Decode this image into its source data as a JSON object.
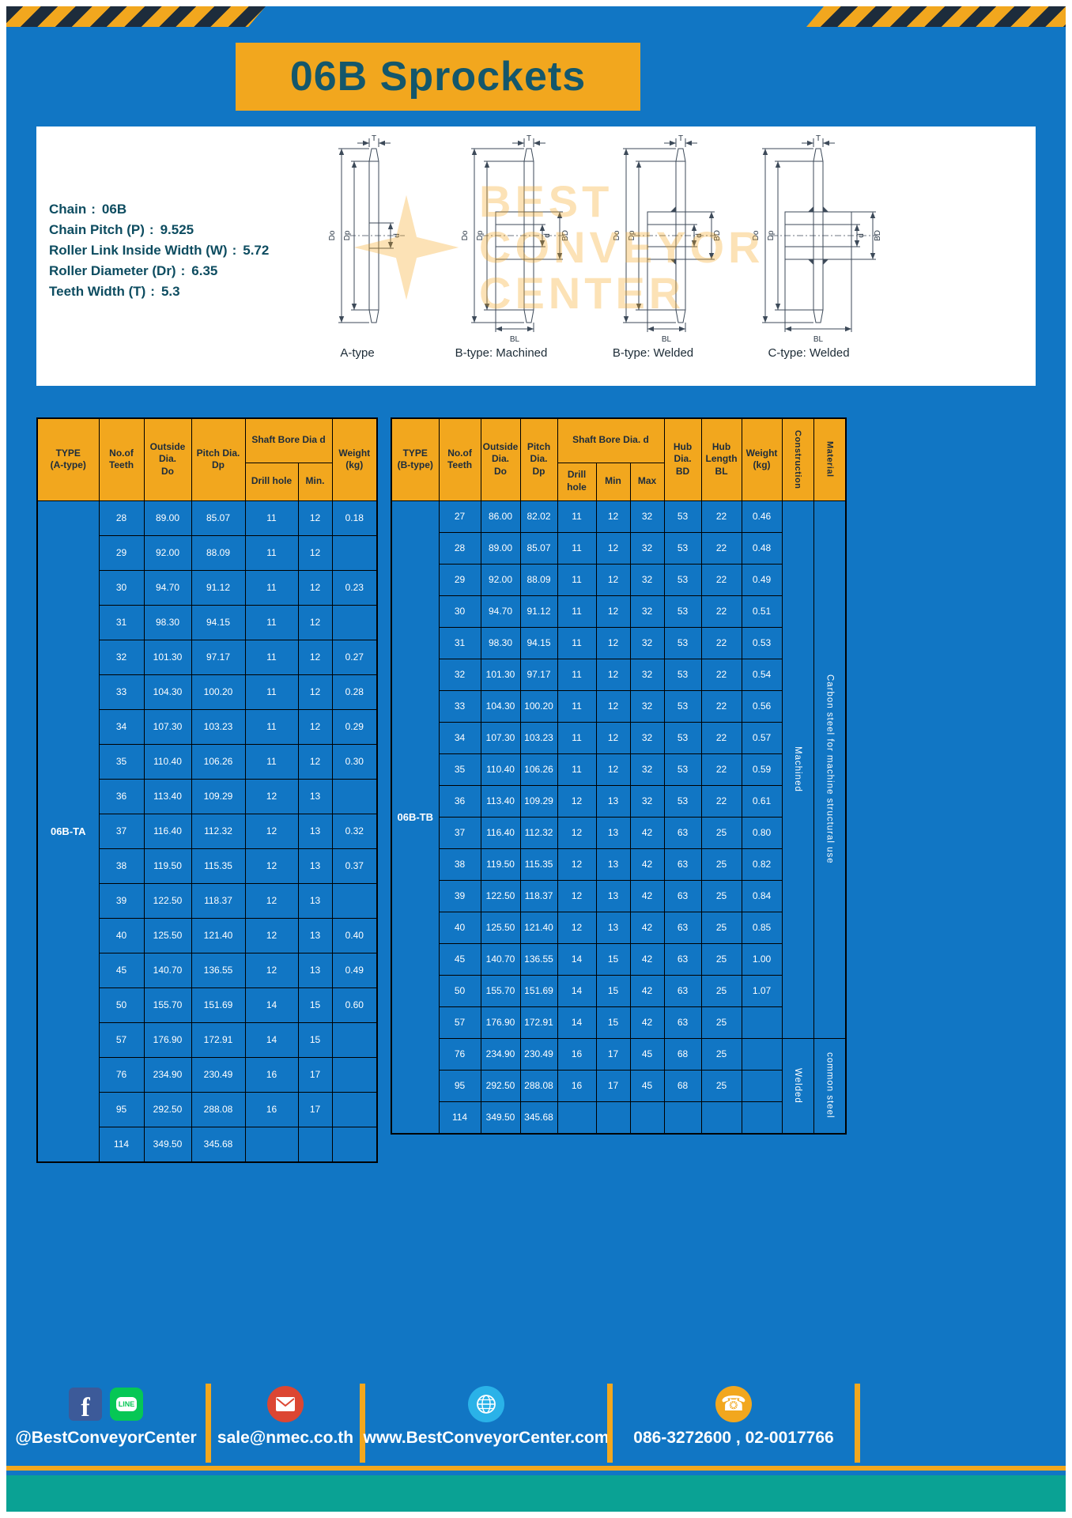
{
  "page": {
    "title": "06B Sprockets"
  },
  "colors": {
    "blue": "#1176c4",
    "yellow": "#f2a71e",
    "navy": "#1d2c3c",
    "title_teal": "#14576b",
    "footer_teal": "#0aa294",
    "line_green": "#06c755",
    "facebook_blue": "#3c5a99"
  },
  "specs": {
    "sep": ":",
    "items": [
      {
        "label": "Chain",
        "value": "06B"
      },
      {
        "label": "Chain Pitch (P)",
        "value": "9.525"
      },
      {
        "label": "Roller Link Inside Width (W)",
        "value": "5.72"
      },
      {
        "label": "Roller Diameter (Dr)",
        "value": "6.35"
      },
      {
        "label": "Teeth Width (T)",
        "value": "5.3"
      }
    ],
    "watermark": {
      "line1": "BEST",
      "line2": "CONVEYOR",
      "line3": "CENTER"
    },
    "drawings": [
      {
        "label": "A-type",
        "dim_t": "T",
        "dim_do": "Do",
        "dim_dp": "Dp",
        "dim_d": "d"
      },
      {
        "label": "B-type: Machined",
        "dim_t": "T",
        "dim_do": "Do",
        "dim_dp": "Dp",
        "dim_d": "d",
        "dim_bd": "BD",
        "dim_bl": "BL"
      },
      {
        "label": "B-type: Welded",
        "dim_t": "T",
        "dim_do": "Do",
        "dim_dp": "Dp",
        "dim_d": "d",
        "dim_bd": "BD",
        "dim_bl": "BL"
      },
      {
        "label": "C-type: Welded",
        "dim_t": "T",
        "dim_do": "Do",
        "dim_dp": "Dp",
        "dim_d": "d",
        "dim_bd": "BD",
        "dim_bl": "BL"
      }
    ]
  },
  "table_a": {
    "headers": {
      "type": "TYPE\n(A-type)",
      "teeth": "No.of\nTeeth",
      "outside": "Outside\nDia.\nDo",
      "pitch": "Pitch Dia.\nDp",
      "shaft": "Shaft Bore Dia d",
      "drill": "Drill hole",
      "min": "Min.",
      "weight": "Weight\n(kg)"
    },
    "type_value": "06B-TA",
    "rows": [
      [
        "28",
        "89.00",
        "85.07",
        "11",
        "12",
        "0.18"
      ],
      [
        "29",
        "92.00",
        "88.09",
        "11",
        "12",
        ""
      ],
      [
        "30",
        "94.70",
        "91.12",
        "11",
        "12",
        "0.23"
      ],
      [
        "31",
        "98.30",
        "94.15",
        "11",
        "12",
        ""
      ],
      [
        "32",
        "101.30",
        "97.17",
        "11",
        "12",
        "0.27"
      ],
      [
        "33",
        "104.30",
        "100.20",
        "11",
        "12",
        "0.28"
      ],
      [
        "34",
        "107.30",
        "103.23",
        "11",
        "12",
        "0.29"
      ],
      [
        "35",
        "110.40",
        "106.26",
        "11",
        "12",
        "0.30"
      ],
      [
        "36",
        "113.40",
        "109.29",
        "12",
        "13",
        ""
      ],
      [
        "37",
        "116.40",
        "112.32",
        "12",
        "13",
        "0.32"
      ],
      [
        "38",
        "119.50",
        "115.35",
        "12",
        "13",
        "0.37"
      ],
      [
        "39",
        "122.50",
        "118.37",
        "12",
        "13",
        ""
      ],
      [
        "40",
        "125.50",
        "121.40",
        "12",
        "13",
        "0.40"
      ],
      [
        "45",
        "140.70",
        "136.55",
        "12",
        "13",
        "0.49"
      ],
      [
        "50",
        "155.70",
        "151.69",
        "14",
        "15",
        "0.60"
      ],
      [
        "57",
        "176.90",
        "172.91",
        "14",
        "15",
        ""
      ],
      [
        "76",
        "234.90",
        "230.49",
        "16",
        "17",
        ""
      ],
      [
        "95",
        "292.50",
        "288.08",
        "16",
        "17",
        ""
      ],
      [
        "114",
        "349.50",
        "345.68",
        "",
        "",
        ""
      ]
    ]
  },
  "table_b": {
    "headers": {
      "type": "TYPE\n(B-type)",
      "teeth": "No.of\nTeeth",
      "outside": "Outside\nDia.\nDo",
      "pitch": "Pitch\nDia.\nDp",
      "shaft": "Shaft Bore Dia. d",
      "drill": "Drill hole",
      "min": "Min",
      "max": "Max",
      "hub_dia": "Hub\nDia.\nBD",
      "hub_len": "Hub\nLength\nBL",
      "weight": "Weight\n(kg)",
      "construction": "Construction",
      "material": "Material"
    },
    "type_value": "06B-TB",
    "rows": [
      [
        "27",
        "86.00",
        "82.02",
        "11",
        "12",
        "32",
        "53",
        "22",
        "0.46"
      ],
      [
        "28",
        "89.00",
        "85.07",
        "11",
        "12",
        "32",
        "53",
        "22",
        "0.48"
      ],
      [
        "29",
        "92.00",
        "88.09",
        "11",
        "12",
        "32",
        "53",
        "22",
        "0.49"
      ],
      [
        "30",
        "94.70",
        "91.12",
        "11",
        "12",
        "32",
        "53",
        "22",
        "0.51"
      ],
      [
        "31",
        "98.30",
        "94.15",
        "11",
        "12",
        "32",
        "53",
        "22",
        "0.53"
      ],
      [
        "32",
        "101.30",
        "97.17",
        "11",
        "12",
        "32",
        "53",
        "22",
        "0.54"
      ],
      [
        "33",
        "104.30",
        "100.20",
        "11",
        "12",
        "32",
        "53",
        "22",
        "0.56"
      ],
      [
        "34",
        "107.30",
        "103.23",
        "11",
        "12",
        "32",
        "53",
        "22",
        "0.57"
      ],
      [
        "35",
        "110.40",
        "106.26",
        "11",
        "12",
        "32",
        "53",
        "22",
        "0.59"
      ],
      [
        "36",
        "113.40",
        "109.29",
        "12",
        "13",
        "32",
        "53",
        "22",
        "0.61"
      ],
      [
        "37",
        "116.40",
        "112.32",
        "12",
        "13",
        "42",
        "63",
        "25",
        "0.80"
      ],
      [
        "38",
        "119.50",
        "115.35",
        "12",
        "13",
        "42",
        "63",
        "25",
        "0.82"
      ],
      [
        "39",
        "122.50",
        "118.37",
        "12",
        "13",
        "42",
        "63",
        "25",
        "0.84"
      ],
      [
        "40",
        "125.50",
        "121.40",
        "12",
        "13",
        "42",
        "63",
        "25",
        "0.85"
      ],
      [
        "45",
        "140.70",
        "136.55",
        "14",
        "15",
        "42",
        "63",
        "25",
        "1.00"
      ],
      [
        "50",
        "155.70",
        "151.69",
        "14",
        "15",
        "42",
        "63",
        "25",
        "1.07"
      ],
      [
        "57",
        "176.90",
        "172.91",
        "14",
        "15",
        "42",
        "63",
        "25",
        ""
      ],
      [
        "76",
        "234.90",
        "230.49",
        "16",
        "17",
        "45",
        "68",
        "25",
        ""
      ],
      [
        "95",
        "292.50",
        "288.08",
        "16",
        "17",
        "45",
        "68",
        "25",
        ""
      ],
      [
        "114",
        "349.50",
        "345.68",
        "",
        "",
        "",
        "",
        "",
        ""
      ]
    ],
    "groups": [
      {
        "name": "construction-cell",
        "segments": [
          {
            "label": "Machined",
            "span": 17
          },
          {
            "label": "Welded",
            "span": 3
          }
        ]
      },
      {
        "name": "material-cell",
        "segments": [
          {
            "label": "Carbon steel for machine structural use",
            "span": 17
          },
          {
            "label": "common steel",
            "span": 3
          }
        ]
      }
    ]
  },
  "footer": {
    "fb_letter": "f",
    "line_text": "LINE",
    "phone_glyph": "☎",
    "facebook_label": "@BestConveyorCenter",
    "email": "sale@nmec.co.th",
    "website": "www.BestConveyorCenter.com",
    "phones": "086-3272600 , 02-0017766"
  }
}
